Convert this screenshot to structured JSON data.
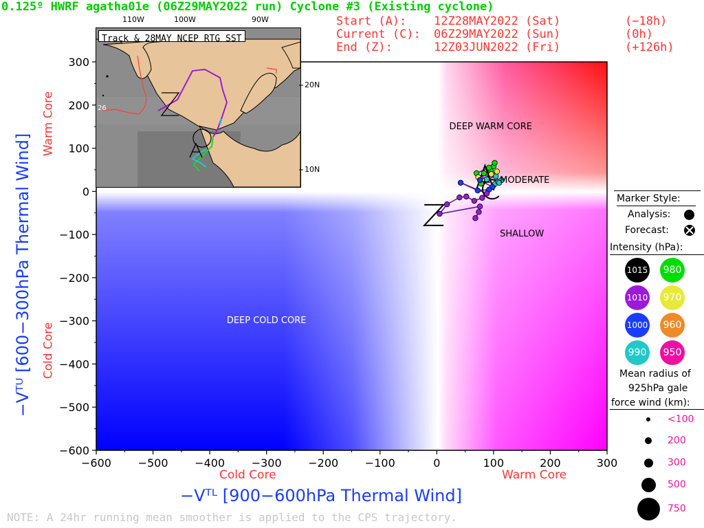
{
  "header": {
    "title": "0.125º HWRF agatha01e (06Z29MAY2022 run) Cyclone #3 (Existing cyclone)",
    "start_label": "Start (A):",
    "start_time": "12Z28MAY2022 (Sat)",
    "start_offset": "(−18h)",
    "current_label": "Current (C):",
    "current_time": "06Z29MAY2022 (Sun)",
    "current_offset": "(0h)",
    "end_label": "End (Z):",
    "end_time": "12Z03JUN2022 (Fri)",
    "end_offset": "(+126h)"
  },
  "inset": {
    "title": "Track & 28MAY NCEP RTG SST",
    "lon_labels": [
      "110W",
      "100W",
      "90W"
    ],
    "lat_labels": [
      "20N",
      "10N"
    ],
    "sst_label": "26",
    "track_markers": [
      "Z",
      "C",
      "A"
    ]
  },
  "legend": {
    "marker_style_title": "Marker Style:",
    "analysis_label": "Analysis:",
    "forecast_label": "Forecast:",
    "intensity_title": "Intensity (hPa):",
    "intensity": [
      {
        "value": "1015",
        "color": "#000000",
        "text": "#ffffff"
      },
      {
        "value": "980",
        "color": "#00dd00",
        "text": "#ffffff"
      },
      {
        "value": "1010",
        "color": "#9a1ad8",
        "text": "#ffffff"
      },
      {
        "value": "970",
        "color": "#e8e838",
        "text": "#ffffff"
      },
      {
        "value": "1000",
        "color": "#1a3cff",
        "text": "#ffffff"
      },
      {
        "value": "960",
        "color": "#ee8a2a",
        "text": "#ffffff"
      },
      {
        "value": "990",
        "color": "#20c8c8",
        "text": "#ffffff"
      },
      {
        "value": "950",
        "color": "#ee10a0",
        "text": "#ffffff"
      }
    ],
    "radius_title_1": "Mean radius of",
    "radius_title_2": "925hPa gale",
    "radius_title_3": "force wind (km):",
    "radius": [
      {
        "label": "<100"
      },
      {
        "label": "200"
      },
      {
        "label": "300"
      },
      {
        "label": "500"
      },
      {
        "label": "750"
      }
    ]
  },
  "note": "NOTE: A 24hr running mean smoother is applied to the CPS trajectory.",
  "chart_data": {
    "type": "scatter",
    "title": "0.125º HWRF agatha01e (06Z29MAY2022 run) Cyclone #3 (Existing cyclone)",
    "xlabel": "−Vᵀᴸ [900−600hPa Thermal Wind]",
    "ylabel": "−Vᵀᵁ [600−300hPa Thermal Wind]",
    "xlim": [
      -600,
      300
    ],
    "ylim": [
      -600,
      300
    ],
    "x_ticks": [
      -600,
      -500,
      -400,
      -300,
      -200,
      -100,
      0,
      100,
      200,
      300
    ],
    "y_ticks": [
      300,
      200,
      100,
      0,
      -100,
      -200,
      -300,
      -400,
      -500,
      -600
    ],
    "x_tick_labels": [
      "−600",
      "−500",
      "−400",
      "−300",
      "−200",
      "−100",
      "0",
      "100",
      "200",
      "300"
    ],
    "y_tick_labels": [
      "300",
      "200",
      "100",
      "0",
      "−100",
      "−200",
      "−300",
      "−400",
      "−500",
      "−600"
    ],
    "x_side_labels": {
      "left": "Cold Core",
      "right": "Warm Core"
    },
    "y_side_labels": {
      "top": "Warm Core",
      "bottom": "Cold Core"
    },
    "regions": [
      {
        "label": "DEEP WARM CORE",
        "x": 95,
        "y": 148,
        "color": "#000000"
      },
      {
        "label": "MODERATE",
        "x": 155,
        "y": 25,
        "color": "#000000"
      },
      {
        "label": "SHALLOW",
        "x": 150,
        "y": -100,
        "color": "#000000"
      },
      {
        "label": "DEEP COLD CORE",
        "x": -300,
        "y": -300,
        "color": "#ffffff"
      }
    ],
    "track_points": [
      {
        "x": 100,
        "y": 14,
        "hpa": 990
      },
      {
        "x": 103,
        "y": 18,
        "hpa": 990
      },
      {
        "x": 108,
        "y": 22,
        "hpa": 990
      },
      {
        "x": 114,
        "y": 26,
        "hpa": 990
      },
      {
        "x": 110,
        "y": 20,
        "hpa": 990
      },
      {
        "x": 104,
        "y": 35,
        "hpa": 990
      },
      {
        "x": 88,
        "y": 28,
        "hpa": 990
      },
      {
        "x": 78,
        "y": 18,
        "hpa": 980
      },
      {
        "x": 83,
        "y": 42,
        "hpa": 980
      },
      {
        "x": 95,
        "y": 48,
        "hpa": 980
      },
      {
        "x": 100,
        "y": 58,
        "hpa": 980
      },
      {
        "x": 102,
        "y": 66,
        "hpa": 980
      },
      {
        "x": 92,
        "y": 55,
        "hpa": 980
      },
      {
        "x": 70,
        "y": 42,
        "hpa": 980
      },
      {
        "x": 73,
        "y": 33,
        "hpa": 970
      },
      {
        "x": 96,
        "y": 40,
        "hpa": 970
      },
      {
        "x": 106,
        "y": 46,
        "hpa": 970
      },
      {
        "x": 76,
        "y": 26,
        "hpa": 1000
      },
      {
        "x": 98,
        "y": 10,
        "hpa": 1000
      },
      {
        "x": 92,
        "y": 4,
        "hpa": 1000
      },
      {
        "x": 72,
        "y": 2,
        "hpa": 1000
      },
      {
        "x": 42,
        "y": 20,
        "hpa": 1000
      },
      {
        "x": 88,
        "y": -5,
        "hpa": 1010
      },
      {
        "x": 80,
        "y": -15,
        "hpa": 1010
      },
      {
        "x": 66,
        "y": -22,
        "hpa": 1010
      },
      {
        "x": 52,
        "y": -12,
        "hpa": 1010
      },
      {
        "x": 40,
        "y": -14,
        "hpa": 1010
      },
      {
        "x": 18,
        "y": -30,
        "hpa": 1010
      },
      {
        "x": 5,
        "y": -52,
        "hpa": 1010
      },
      {
        "x": 76,
        "y": -35,
        "hpa": 1010
      },
      {
        "x": 74,
        "y": -48,
        "hpa": 1010
      },
      {
        "x": 68,
        "y": -62,
        "hpa": 1010
      }
    ],
    "track_markers": [
      {
        "label": "A",
        "x": 85,
        "y": 28
      },
      {
        "label": "C",
        "x": 95,
        "y": 5
      },
      {
        "label": "Z",
        "x": -5,
        "y": -55
      }
    ]
  }
}
